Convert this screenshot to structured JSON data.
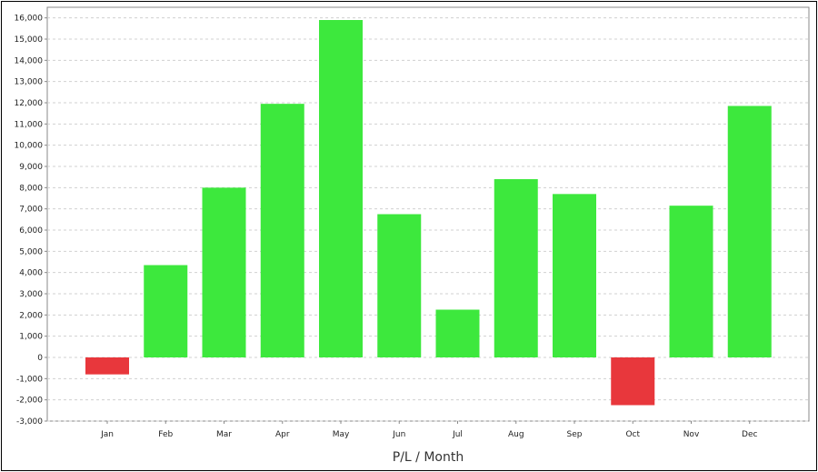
{
  "chart_data": {
    "type": "bar",
    "xlabel": "P/L / Month",
    "ylabel": "",
    "title": "",
    "categories": [
      "Jan",
      "Feb",
      "Mar",
      "Apr",
      "May",
      "Jun",
      "Jul",
      "Aug",
      "Sep",
      "Oct",
      "Nov",
      "Dec"
    ],
    "values": [
      -800,
      4350,
      8000,
      11950,
      15900,
      6750,
      2250,
      8400,
      7700,
      -2250,
      7150,
      11850
    ],
    "ylim": [
      -3000,
      16500
    ],
    "yticks": [
      -3000,
      -2000,
      -1000,
      0,
      1000,
      2000,
      3000,
      4000,
      5000,
      6000,
      7000,
      8000,
      9000,
      10000,
      11000,
      12000,
      13000,
      14000,
      15000,
      16000
    ],
    "grid": true,
    "legend": "none",
    "colors": {
      "positive": "#3de83d",
      "negative": "#e8373c",
      "grid": "#d0d0d0",
      "axis": "#888888"
    }
  }
}
